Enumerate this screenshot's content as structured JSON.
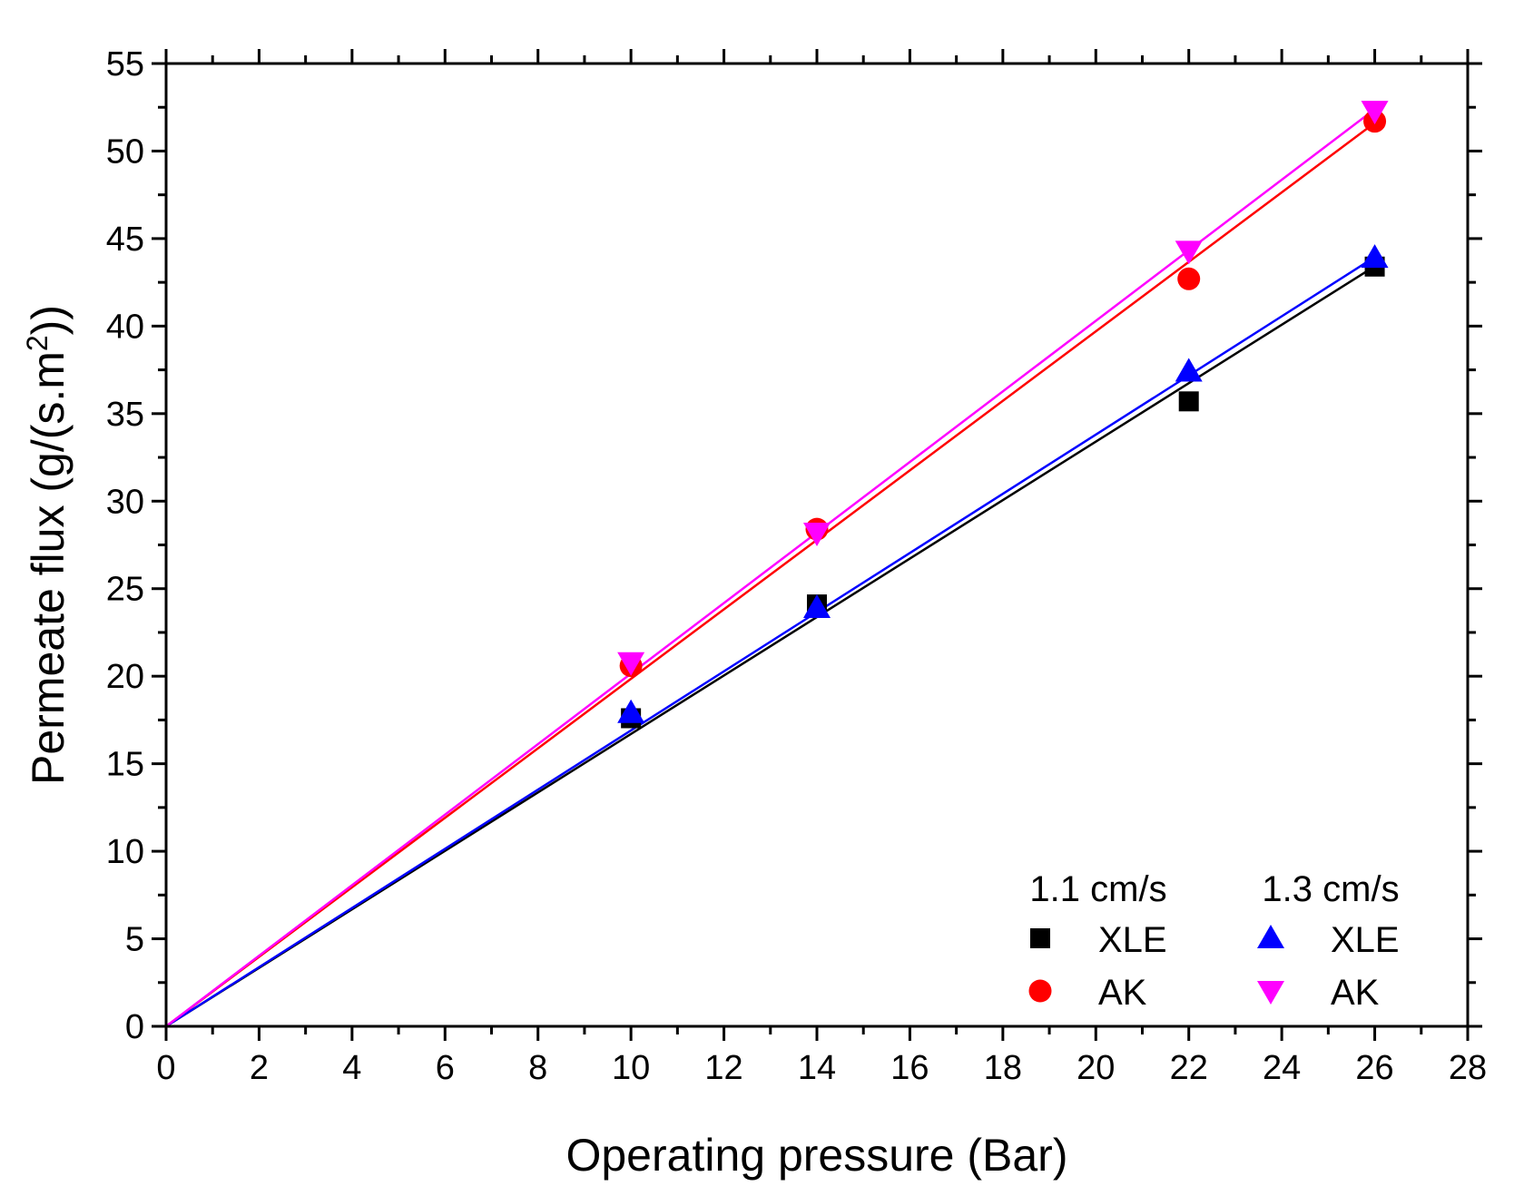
{
  "chart_data": {
    "type": "scatter",
    "xlabel": "Operating pressure (Bar)",
    "ylabel": {
      "prefix": "Permeate flux (g/(s.m",
      "superscript": "2",
      "suffix": "))"
    },
    "xlim": [
      0,
      28
    ],
    "ylim": [
      0,
      55
    ],
    "xticks": [
      0,
      2,
      4,
      6,
      8,
      10,
      12,
      14,
      16,
      18,
      20,
      22,
      24,
      26,
      28
    ],
    "yticks": [
      0,
      5,
      10,
      15,
      20,
      25,
      30,
      35,
      40,
      45,
      50,
      55
    ],
    "grid": false,
    "legend": {
      "position": "bottom-right",
      "group_titles": [
        "1.1 cm/s",
        "1.3 cm/s"
      ]
    },
    "series": [
      {
        "name": "XLE",
        "group": "1.1 cm/s",
        "marker": "square",
        "color": "#000000",
        "x": [
          10,
          14,
          22,
          26
        ],
        "y": [
          17.6,
          24.1,
          35.7,
          43.4
        ],
        "fit_slope": 1.67
      },
      {
        "name": "AK",
        "group": "1.1 cm/s",
        "marker": "circle",
        "color": "#ff0000",
        "x": [
          10,
          14,
          22,
          26
        ],
        "y": [
          20.6,
          28.4,
          42.7,
          51.7
        ],
        "fit_slope": 1.985
      },
      {
        "name": "XLE",
        "group": "1.3 cm/s",
        "marker": "triangle-up",
        "color": "#0000ff",
        "x": [
          10,
          14,
          22,
          26
        ],
        "y": [
          17.9,
          23.9,
          37.4,
          43.9
        ],
        "fit_slope": 1.69
      },
      {
        "name": "AK",
        "group": "1.3 cm/s",
        "marker": "triangle-down",
        "color": "#ff00ff",
        "x": [
          10,
          14,
          22,
          26
        ],
        "y": [
          20.8,
          28.2,
          44.3,
          52.3
        ],
        "fit_slope": 2.015
      }
    ]
  }
}
